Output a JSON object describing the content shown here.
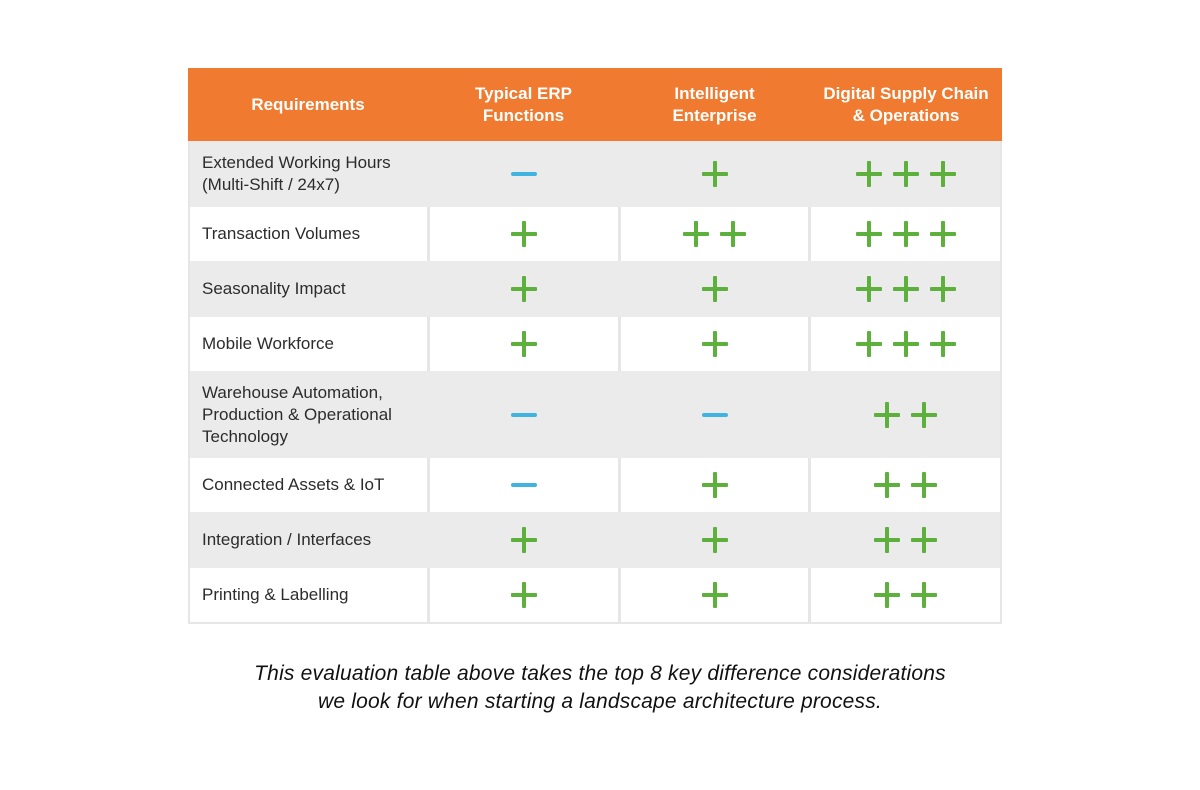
{
  "table": {
    "headers": [
      {
        "line1": "Requirements",
        "line2": ""
      },
      {
        "line1": "Typical ERP",
        "line2": "Functions"
      },
      {
        "line1": "Intelligent",
        "line2": "Enterprise"
      },
      {
        "line1": "Digital Supply Chain",
        "line2": "& Operations"
      }
    ],
    "rows": [
      {
        "label_lines": [
          "Extended Working Hours",
          "(Multi-Shift / 24x7)"
        ],
        "height": 66,
        "marks": [
          "-",
          "+",
          "+++"
        ]
      },
      {
        "label_lines": [
          "Transaction Volumes"
        ],
        "height": 54,
        "marks": [
          "+",
          "++",
          "+++"
        ]
      },
      {
        "label_lines": [
          "Seasonality Impact"
        ],
        "height": 56,
        "marks": [
          "+",
          "+",
          "+++"
        ]
      },
      {
        "label_lines": [
          "Mobile Workforce"
        ],
        "height": 54,
        "marks": [
          "+",
          "+",
          "+++"
        ]
      },
      {
        "label_lines": [
          "Warehouse Automation,",
          "Production & Operational",
          "Technology"
        ],
        "height": 87,
        "marks": [
          "-",
          "-",
          "++"
        ]
      },
      {
        "label_lines": [
          "Connected Assets & IoT"
        ],
        "height": 54,
        "marks": [
          "-",
          "+",
          "++"
        ]
      },
      {
        "label_lines": [
          "Integration / Interfaces"
        ],
        "height": 56,
        "marks": [
          "+",
          "+",
          "++"
        ]
      },
      {
        "label_lines": [
          "Printing & Labelling"
        ],
        "height": 54,
        "marks": [
          "+",
          "+",
          "++"
        ]
      }
    ]
  },
  "caption": {
    "line1": "This evaluation table above takes the top 8 key difference considerations",
    "line2": "we look for when starting a landscape architecture process."
  },
  "colors": {
    "header": "#f07a2f",
    "plus": "#5db03c",
    "minus": "#3fb4e0",
    "row_alt": "#ebebeb"
  },
  "legend_icons": {
    "+": "plus-icon",
    "-": "minus-icon"
  }
}
